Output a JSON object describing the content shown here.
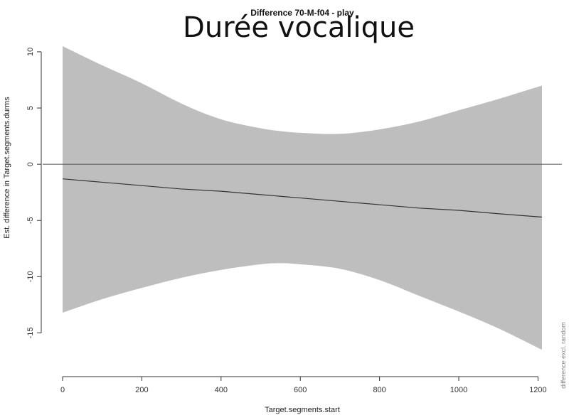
{
  "overlay_title": "Durée vocalique",
  "side_note": "difference excl. random",
  "chart_data": {
    "type": "area",
    "title": "Difference 70-M-f04 - play",
    "xlabel": "Target.segments.start",
    "ylabel": "Est. difference in Target.segments.durms",
    "xlim": [
      0,
      1210
    ],
    "ylim": [
      -17.5,
      10.5
    ],
    "x_ticks": [
      0,
      200,
      400,
      600,
      800,
      1000,
      1200
    ],
    "y_ticks": [
      -15,
      -10,
      -5,
      0,
      5,
      10
    ],
    "grid": false,
    "reference_line": 0,
    "colors": {
      "band": "#bebebe",
      "line": "#333333"
    },
    "series": [
      {
        "x": [
          0,
          100,
          200,
          300,
          400,
          500,
          550,
          600,
          700,
          800,
          900,
          1000,
          1100,
          1210
        ],
        "estimate": [
          -1.3,
          -1.6,
          -1.9,
          -2.2,
          -2.4,
          -2.7,
          -2.85,
          -3.0,
          -3.3,
          -3.6,
          -3.9,
          -4.1,
          -4.4,
          -4.7
        ],
        "upper": [
          10.5,
          8.8,
          7.2,
          5.4,
          4.0,
          3.2,
          2.95,
          2.8,
          2.7,
          3.1,
          3.8,
          4.8,
          5.8,
          7.0
        ],
        "lower": [
          -13.2,
          -12.0,
          -11.0,
          -10.1,
          -9.4,
          -8.9,
          -8.8,
          -8.9,
          -9.3,
          -10.3,
          -11.7,
          -13.1,
          -14.6,
          -16.5
        ]
      }
    ]
  }
}
